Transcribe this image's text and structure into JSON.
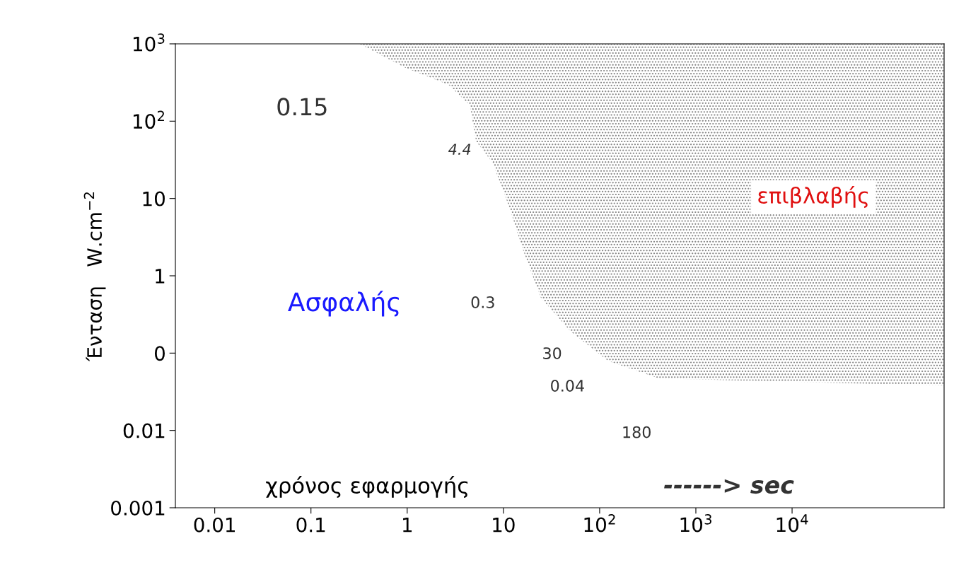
{
  "chart_data": {
    "type": "area",
    "ylabel": "Ένταση   W.cm$^{−2}$",
    "log": "xy",
    "grid": false,
    "xlim": [
      0.0039,
      380000
    ],
    "ylim": [
      0.001,
      1000
    ],
    "xticks": [
      0.01,
      0.1,
      1,
      10,
      {
        "value": 100,
        "label": "10$^{2}$"
      },
      {
        "value": 1000,
        "label": "10$^{3}$"
      },
      {
        "value": 10000,
        "label": "10$^{4}$"
      }
    ],
    "yticks": [
      {
        "value": 1000,
        "label": "10$^{3}$"
      },
      {
        "value": 100,
        "label": "10$^{2}$"
      },
      10,
      1,
      {
        "value": 0.1,
        "label": "0"
      },
      0.01,
      0.001
    ],
    "series": [
      {
        "color": "#808080",
        "x": [
          0.32,
          0.93,
          2.7,
          4.5,
          5.2,
          7.7,
          10,
          12,
          15.7,
          24.5,
          50,
          123,
          417,
          380000,
          380000
        ],
        "values": [
          1000,
          500,
          295,
          160,
          55,
          29,
          12.5,
          6.6,
          2.3,
          0.52,
          0.19,
          0.079,
          0.047,
          0.038,
          1000
        ]
      }
    ],
    "annotations": [
      "0.15",
      "4.4",
      "0.3",
      "30",
      "0.04",
      "180",
      "Ασφαλής",
      "επιβλαβής",
      "χρόνος εφαρμογής",
      "------> sec"
    ]
  }
}
